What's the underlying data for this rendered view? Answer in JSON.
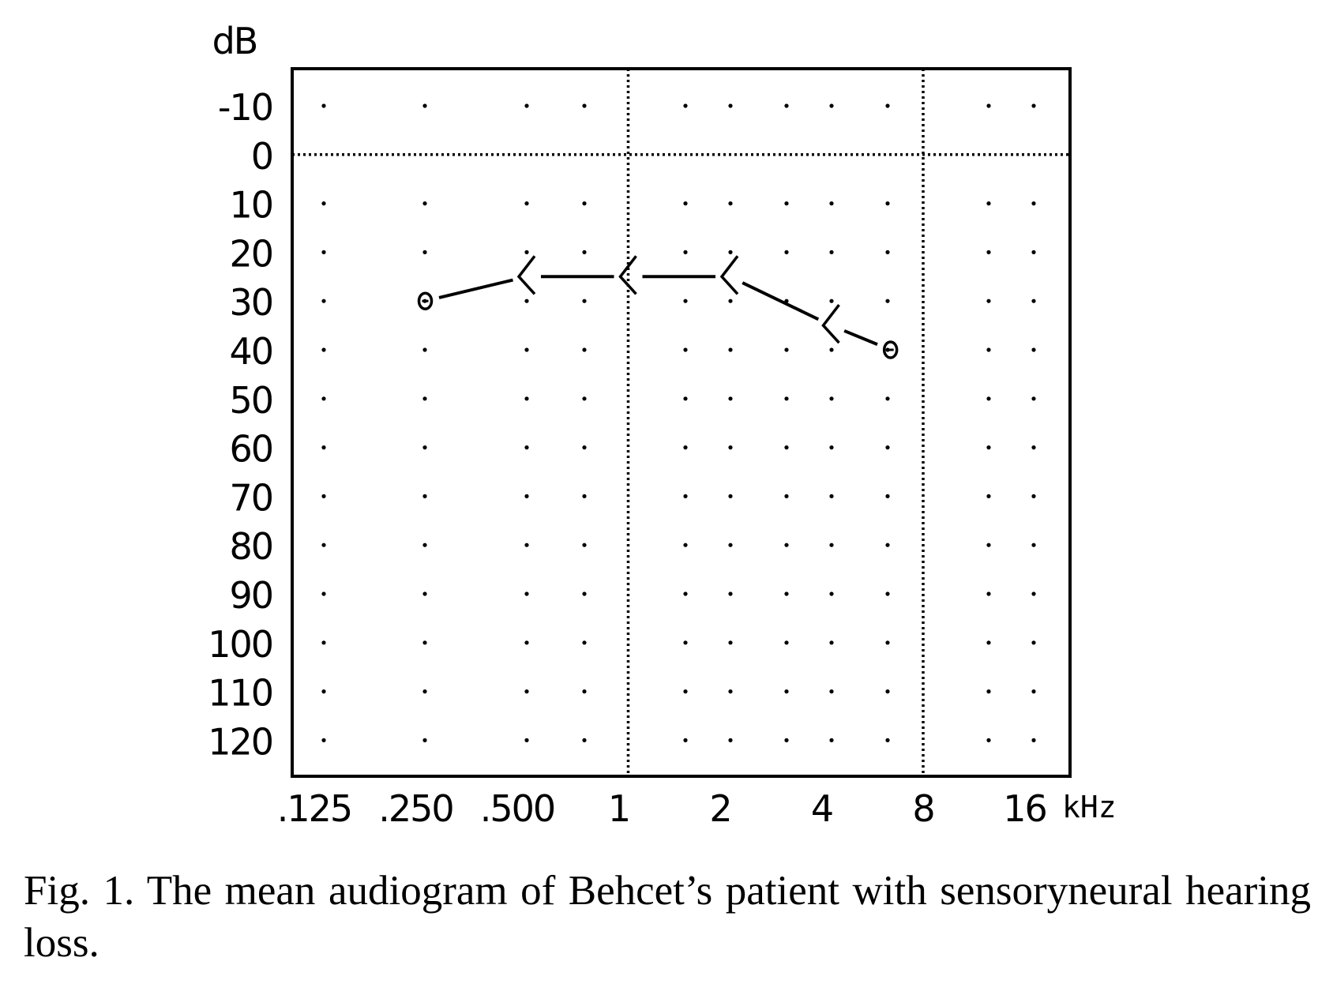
{
  "caption": "Fig. 1. The mean audiogram of Behcet’s patient with sensoryneural hearing loss.",
  "chart_data": {
    "type": "line",
    "ylabel": "dB",
    "xlabel": "kHz",
    "y_ticks": [
      "-10",
      "0",
      "10",
      "20",
      "30",
      "40",
      "50",
      "60",
      "70",
      "80",
      "90",
      "100",
      "110",
      "120"
    ],
    "ylim": [
      -10,
      120
    ],
    "y_inverted": true,
    "x_scale": "log2",
    "x_ticks": [
      ".125",
      ".250",
      ".500",
      "1",
      "2",
      "4",
      "8",
      "16"
    ],
    "x_tick_values": [
      0.125,
      0.25,
      0.5,
      1,
      2,
      4,
      8,
      16
    ],
    "grid": "dotted",
    "reference_lines": {
      "y": [
        0
      ],
      "x": [
        1,
        8
      ]
    },
    "series": [
      {
        "points": [
          {
            "x": 0.25,
            "y": 30,
            "marker": "o"
          },
          {
            "x": 0.5,
            "y": 25,
            "marker": "<"
          },
          {
            "x": 1,
            "y": 25,
            "marker": "<"
          },
          {
            "x": 2,
            "y": 25,
            "marker": "<"
          },
          {
            "x": 4,
            "y": 35,
            "marker": "<"
          },
          {
            "x": 6,
            "y": 40,
            "marker": "o"
          }
        ]
      }
    ],
    "colors": {
      "ink": "#000000"
    }
  }
}
